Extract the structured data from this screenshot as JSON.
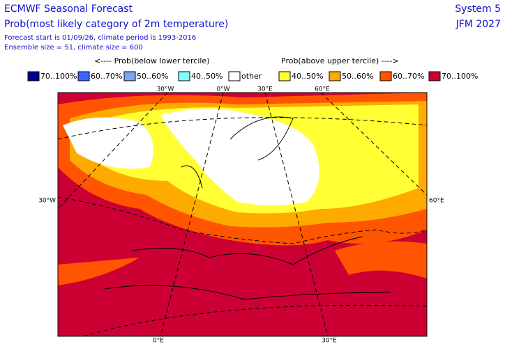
{
  "header": {
    "title": "ECMWF Seasonal Forecast",
    "subtitle": "Prob(most likely category of 2m temperature)",
    "line1": "Forecast start is 01/09/26, climate period is 1993-2016",
    "line2": "Ensemble size = 51, climate size = 600",
    "system": "System 5",
    "period": "JFM 2027"
  },
  "legend": {
    "below_label": "<---- Prob(below lower tercile)",
    "above_label": "Prob(above upper tercile) ---->",
    "items": [
      {
        "label": "70..100%",
        "color": "#00008c"
      },
      {
        "label": "60..70%",
        "color": "#3c64ff"
      },
      {
        "label": "50..60%",
        "color": "#78a8f0"
      },
      {
        "label": "40..50%",
        "color": "#80ffff"
      },
      {
        "label": "other",
        "color": "#ffffff"
      },
      {
        "label": "40..50%",
        "color": "#ffff33"
      },
      {
        "label": "50..60%",
        "color": "#ffaa00"
      },
      {
        "label": "60..70%",
        "color": "#ff5500"
      },
      {
        "label": "70..100%",
        "color": "#cc0033"
      }
    ]
  },
  "map": {
    "top_labels": [
      "30°W",
      "0°W",
      "30°E",
      "60°E"
    ],
    "left_label": "30°W",
    "right_label": "60°E",
    "bottom_labels": [
      "0°E",
      "30°E"
    ]
  }
}
